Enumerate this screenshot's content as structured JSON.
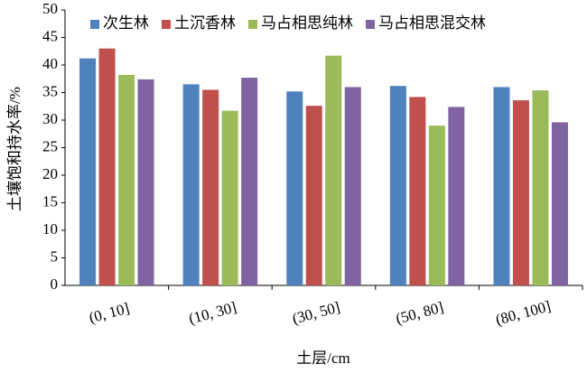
{
  "chart_data": {
    "type": "bar",
    "categories": [
      "(0, 10]",
      "(10, 30]",
      "(30, 50]",
      "(50, 80]",
      "(80, 100]"
    ],
    "series": [
      {
        "name": "次生林",
        "color": "#4f81bd",
        "values": [
          41.2,
          36.5,
          35.2,
          36.2,
          36.0
        ]
      },
      {
        "name": "土沉香林",
        "color": "#c0504d",
        "values": [
          43.0,
          35.5,
          32.6,
          34.2,
          33.6
        ]
      },
      {
        "name": "马占相思纯林",
        "color": "#9bbb59",
        "values": [
          38.2,
          31.7,
          41.7,
          29.0,
          35.4
        ]
      },
      {
        "name": "马占相思混交林",
        "color": "#8064a2",
        "values": [
          37.4,
          37.7,
          36.0,
          32.4,
          29.6
        ]
      }
    ],
    "ylim": [
      0,
      50
    ],
    "yticks": [
      0,
      5,
      10,
      15,
      20,
      25,
      30,
      35,
      40,
      45,
      50
    ],
    "y_label": "土壤饱和持水率/%",
    "x_label": "土层/cm",
    "legend": "upper left",
    "grid": false
  }
}
